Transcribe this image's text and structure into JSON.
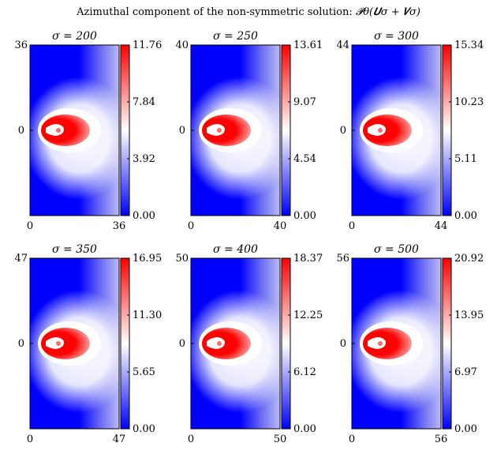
{
  "figure": {
    "title_text": "Azimuthal component of the non-symmetric solution: ",
    "title_math": "𝓟θ(𝑼σ + 𝑽σ)"
  },
  "chart_data": [
    {
      "type": "heatmap",
      "title": "σ = 200",
      "sigma": 200,
      "x_ticks": [
        "0",
        "36"
      ],
      "y_ticks": [
        "36",
        "0"
      ],
      "xlim": [
        0,
        36
      ],
      "ylim": [
        -36,
        36
      ],
      "colorbar_ticks": [
        "11.76",
        "7.84",
        "3.92",
        "0.00"
      ],
      "vmin": 0.0,
      "vmax": 11.76,
      "colormap": [
        "#0000ff",
        "#ffffff",
        "#ff0000"
      ]
    },
    {
      "type": "heatmap",
      "title": "σ = 250",
      "sigma": 250,
      "x_ticks": [
        "0",
        "40"
      ],
      "y_ticks": [
        "40",
        "0"
      ],
      "xlim": [
        0,
        40
      ],
      "ylim": [
        -40,
        40
      ],
      "colorbar_ticks": [
        "13.61",
        "9.07",
        "4.54",
        "0.00"
      ],
      "vmin": 0.0,
      "vmax": 13.61,
      "colormap": [
        "#0000ff",
        "#ffffff",
        "#ff0000"
      ]
    },
    {
      "type": "heatmap",
      "title": "σ = 300",
      "sigma": 300,
      "x_ticks": [
        "0",
        "44"
      ],
      "y_ticks": [
        "44",
        "0"
      ],
      "xlim": [
        0,
        44
      ],
      "ylim": [
        -44,
        44
      ],
      "colorbar_ticks": [
        "15.34",
        "10.23",
        "5.11",
        "0.00"
      ],
      "vmin": 0.0,
      "vmax": 15.34,
      "colormap": [
        "#0000ff",
        "#ffffff",
        "#ff0000"
      ]
    },
    {
      "type": "heatmap",
      "title": "σ = 350",
      "sigma": 350,
      "x_ticks": [
        "0",
        "47"
      ],
      "y_ticks": [
        "47",
        "0"
      ],
      "xlim": [
        0,
        47
      ],
      "ylim": [
        -47,
        47
      ],
      "colorbar_ticks": [
        "16.95",
        "11.30",
        "5.65",
        "0.00"
      ],
      "vmin": 0.0,
      "vmax": 16.95,
      "colormap": [
        "#0000ff",
        "#ffffff",
        "#ff0000"
      ]
    },
    {
      "type": "heatmap",
      "title": "σ = 400",
      "sigma": 400,
      "x_ticks": [
        "0",
        "50"
      ],
      "y_ticks": [
        "50",
        "0"
      ],
      "xlim": [
        0,
        50
      ],
      "ylim": [
        -50,
        50
      ],
      "colorbar_ticks": [
        "18.37",
        "12.25",
        "6.12",
        "0.00"
      ],
      "vmin": 0.0,
      "vmax": 18.37,
      "colormap": [
        "#0000ff",
        "#ffffff",
        "#ff0000"
      ]
    },
    {
      "type": "heatmap",
      "title": "σ = 500",
      "sigma": 500,
      "x_ticks": [
        "0",
        "56"
      ],
      "y_ticks": [
        "56",
        "0"
      ],
      "xlim": [
        0,
        56
      ],
      "ylim": [
        -56,
        56
      ],
      "colorbar_ticks": [
        "20.92",
        "13.95",
        "6.97",
        "0.00"
      ],
      "vmin": 0.0,
      "vmax": 20.92,
      "colormap": [
        "#0000ff",
        "#ffffff",
        "#ff0000"
      ]
    }
  ]
}
